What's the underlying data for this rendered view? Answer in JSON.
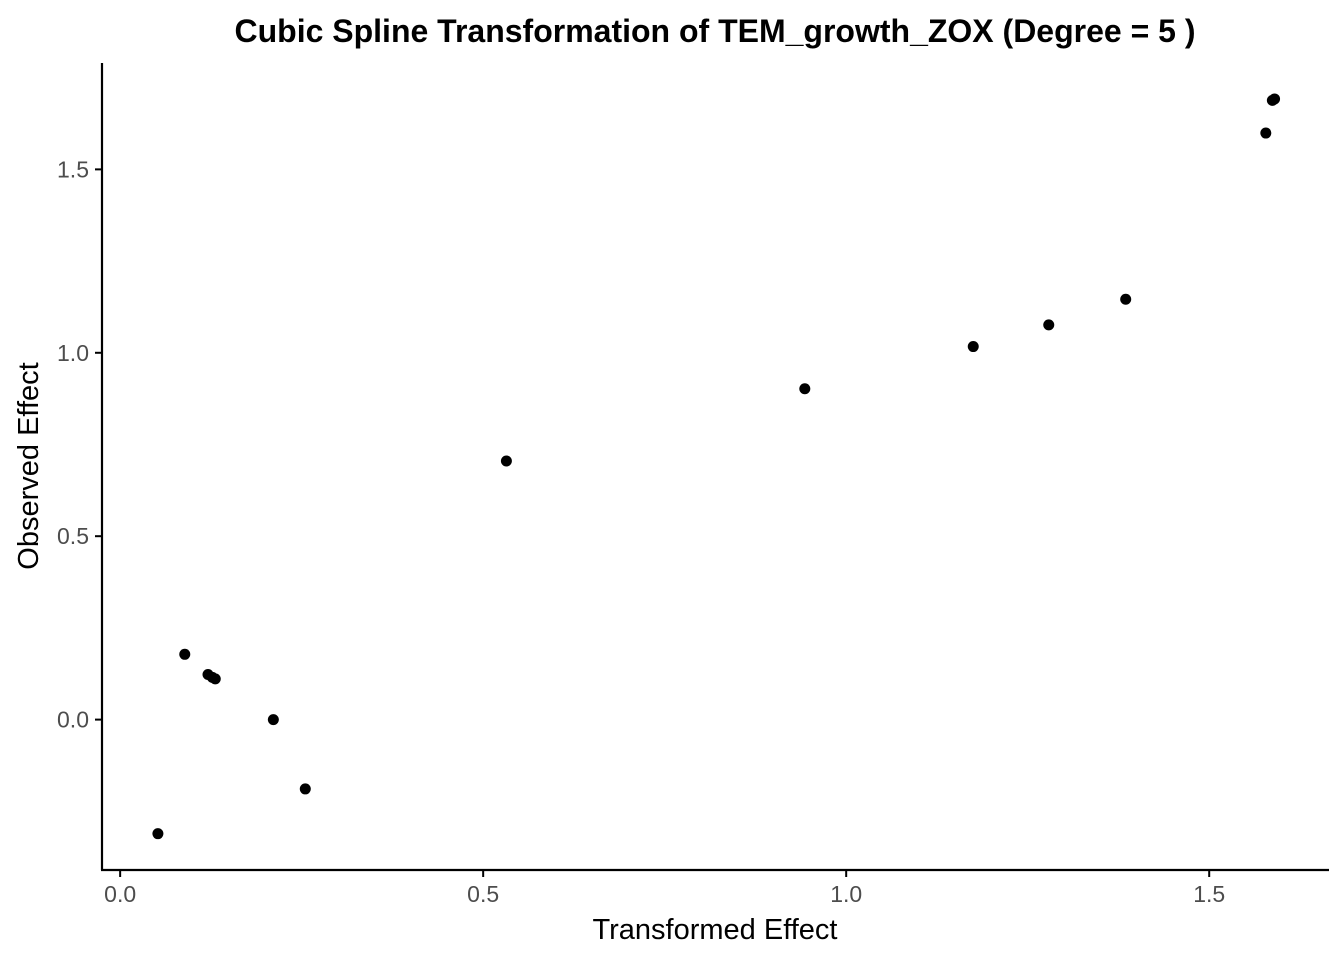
{
  "chart_data": {
    "type": "scatter",
    "title": "Cubic Spline Transformation of TEM_growth_ZOX (Degree = 5 )",
    "xlabel": "Transformed Effect",
    "ylabel": "Observed Effect",
    "xlim": [
      -0.025,
      1.665
    ],
    "ylim": [
      -0.41,
      1.79
    ],
    "x_ticks": [
      0.0,
      0.5,
      1.0,
      1.5
    ],
    "x_tick_labels": [
      "0.0",
      "0.5",
      "1.0",
      "1.5"
    ],
    "y_ticks": [
      0.0,
      0.5,
      1.0,
      1.5
    ],
    "y_tick_labels": [
      "0.0",
      "0.5",
      "1.0",
      "1.5"
    ],
    "grid": false,
    "marker_color": "#000000",
    "points": [
      {
        "x": 0.052,
        "y": -0.311
      },
      {
        "x": 0.089,
        "y": 0.178
      },
      {
        "x": 0.121,
        "y": 0.123
      },
      {
        "x": 0.127,
        "y": 0.115
      },
      {
        "x": 0.131,
        "y": 0.111
      },
      {
        "x": 0.211,
        "y": 0.0
      },
      {
        "x": 0.255,
        "y": -0.189
      },
      {
        "x": 0.532,
        "y": 0.705
      },
      {
        "x": 0.943,
        "y": 0.902
      },
      {
        "x": 1.175,
        "y": 1.017
      },
      {
        "x": 1.279,
        "y": 1.076
      },
      {
        "x": 1.385,
        "y": 1.146
      },
      {
        "x": 1.578,
        "y": 1.599
      },
      {
        "x": 1.587,
        "y": 1.688
      },
      {
        "x": 1.59,
        "y": 1.692
      }
    ]
  }
}
